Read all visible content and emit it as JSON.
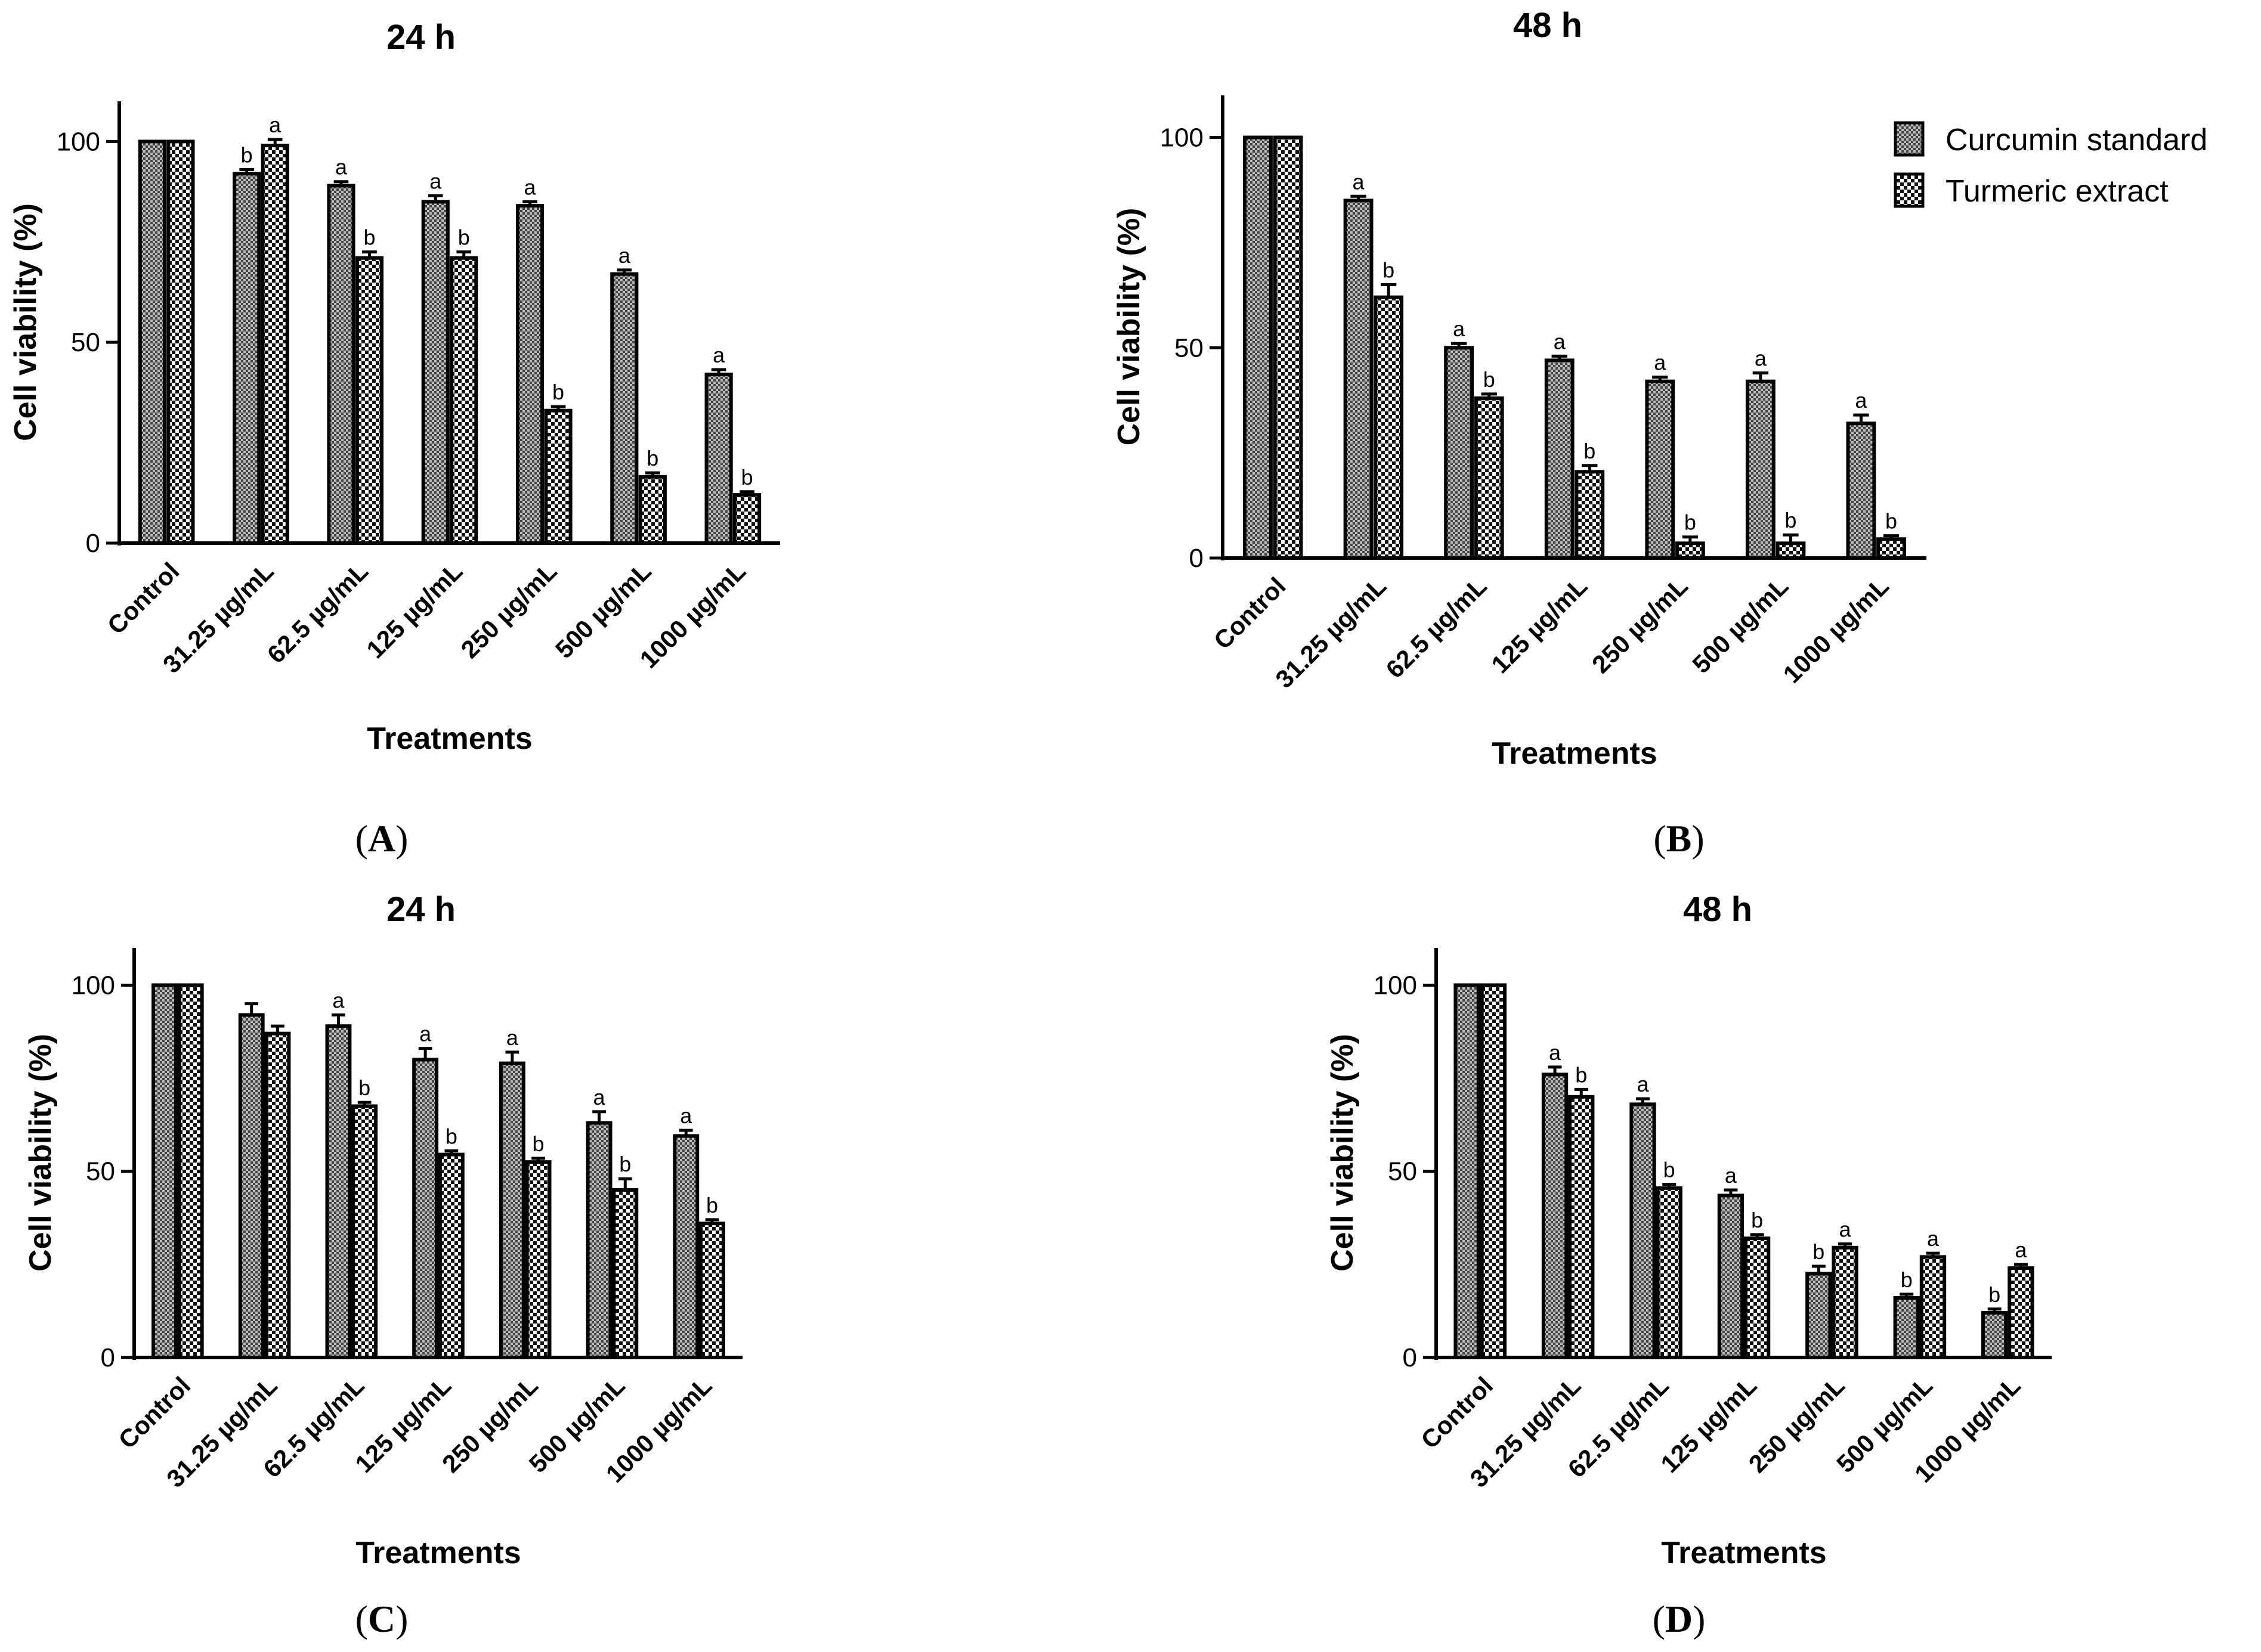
{
  "legend": {
    "series": [
      "Curcumin standard",
      "Turmeric extract"
    ]
  },
  "chart_data": [
    {
      "panel": "A",
      "type": "bar",
      "title": "24 h",
      "xlabel": "Treatments",
      "ylabel": "Cell viability (%)",
      "ylim": [
        0,
        110
      ],
      "yticks": [
        0,
        50,
        100
      ],
      "categories": [
        "Control",
        "31.25 µg/mL",
        "62.5 µg/mL",
        "125 µg/mL",
        "250 µg/mL",
        "500 µg/mL",
        "1000 µg/mL"
      ],
      "series": [
        {
          "name": "Curcumin standard",
          "values": [
            100,
            92,
            89,
            85,
            84,
            67,
            42
          ],
          "errors": [
            0,
            1,
            1,
            1.5,
            1,
            1,
            1.2
          ],
          "labels": [
            "",
            "b",
            "a",
            "a",
            "a",
            "a",
            "a"
          ]
        },
        {
          "name": "Turmeric extract",
          "values": [
            100,
            99,
            71,
            71,
            33,
            16.5,
            12
          ],
          "errors": [
            0,
            1.5,
            1.5,
            1.5,
            1,
            1,
            0.8
          ],
          "labels": [
            "",
            "a",
            "b",
            "b",
            "b",
            "b",
            "b"
          ]
        }
      ],
      "panel_label": "(A)"
    },
    {
      "panel": "B",
      "type": "bar",
      "title": "48 h",
      "xlabel": "Treatments",
      "ylabel": "Cell viability (%)",
      "ylim": [
        0,
        110
      ],
      "yticks": [
        0,
        50,
        100
      ],
      "categories": [
        "Control",
        "31.25 µg/mL",
        "62.5 µg/mL",
        "125 µg/mL",
        "250 µg/mL",
        "500 µg/mL",
        "1000 µg/mL"
      ],
      "series": [
        {
          "name": "Curcumin standard",
          "values": [
            100,
            85,
            50,
            47,
            42,
            42,
            32
          ],
          "errors": [
            0,
            1,
            1,
            1,
            1,
            2,
            2
          ],
          "labels": [
            "",
            "a",
            "a",
            "a",
            "a",
            "a",
            "a"
          ]
        },
        {
          "name": "Turmeric extract",
          "values": [
            100,
            62,
            38,
            20.5,
            3.5,
            3.5,
            4.5
          ],
          "errors": [
            0,
            3,
            1,
            1.5,
            1.5,
            2,
            0.8
          ],
          "labels": [
            "",
            "b",
            "b",
            "b",
            "b",
            "b",
            "b"
          ]
        }
      ],
      "legend_position": "top-right",
      "panel_label": "(B)"
    },
    {
      "panel": "C",
      "type": "bar",
      "title": "24 h",
      "xlabel": "Treatments",
      "ylabel": "Cell viability (%)",
      "ylim": [
        0,
        110
      ],
      "yticks": [
        0,
        50,
        100
      ],
      "categories": [
        "Control",
        "31.25 µg/mL",
        "62.5 µg/mL",
        "125 µg/mL",
        "250 µg/mL",
        "500 µg/mL",
        "1000 µg/mL"
      ],
      "series": [
        {
          "name": "Curcumin standard",
          "values": [
            100,
            92,
            89,
            80,
            79,
            63,
            59.5
          ],
          "errors": [
            0,
            3,
            3,
            3,
            3,
            3,
            1.5
          ],
          "labels": [
            "",
            "",
            "a",
            "a",
            "a",
            "a",
            "a"
          ]
        },
        {
          "name": "Turmeric extract",
          "values": [
            100,
            87,
            67.5,
            54.5,
            52.5,
            45,
            36
          ],
          "errors": [
            0,
            2,
            1,
            1,
            1,
            3,
            1
          ],
          "labels": [
            "",
            "",
            "b",
            "b",
            "b",
            "b",
            "b"
          ]
        }
      ],
      "panel_label": "(C)"
    },
    {
      "panel": "D",
      "type": "bar",
      "title": "48 h",
      "xlabel": "Treatments",
      "ylabel": "Cell viability (%)",
      "ylim": [
        0,
        110
      ],
      "yticks": [
        0,
        50,
        100
      ],
      "categories": [
        "Control",
        "31.25 µg/mL",
        "62.5 µg/mL",
        "125 µg/mL",
        "250 µg/mL",
        "500 µg/mL",
        "1000 µg/mL"
      ],
      "series": [
        {
          "name": "Curcumin standard",
          "values": [
            100,
            76,
            68,
            43.5,
            22.5,
            16,
            12
          ],
          "errors": [
            0,
            2,
            1.5,
            1.5,
            2,
            1,
            1
          ],
          "labels": [
            "",
            "a",
            "a",
            "a",
            "b",
            "b",
            "b"
          ]
        },
        {
          "name": "Turmeric extract",
          "values": [
            100,
            70,
            45.5,
            32,
            29.5,
            27,
            24
          ],
          "errors": [
            0,
            2,
            1,
            1,
            1,
            1,
            1
          ],
          "labels": [
            "",
            "b",
            "b",
            "b",
            "a",
            "a",
            "a"
          ]
        }
      ],
      "panel_label": "(D)"
    }
  ]
}
